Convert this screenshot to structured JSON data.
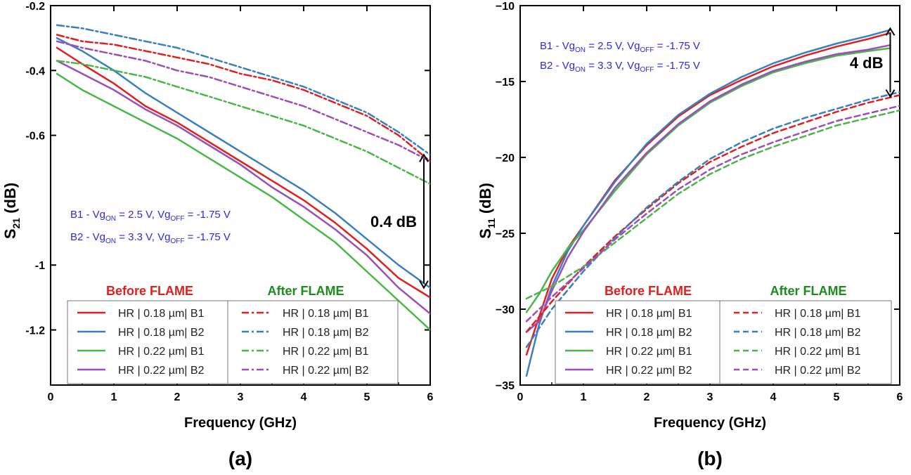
{
  "chart_data": [
    {
      "type": "line",
      "panel_label": "(a)",
      "xlabel": "Frequency (GHz)",
      "ylabel": {
        "main": "S",
        "sub": "21",
        "tail": " (dB)"
      },
      "xlim": [
        0,
        6
      ],
      "ylim": [
        -1.37,
        -0.2
      ],
      "xticks": [
        0,
        1,
        2,
        3,
        4,
        5,
        6
      ],
      "yticks": [
        -0.2,
        -0.4,
        -0.6,
        -1,
        -1.2
      ],
      "ytick_labels": [
        "-0.2",
        "-0.4",
        "-0.6",
        "-1",
        "-1.2"
      ],
      "grid": false,
      "legend_placement": "bottom",
      "group_labels": {
        "before": "Before FLAME",
        "after": "After FLAME"
      },
      "bias_notes": [
        {
          "prefix": "B1 - Vg",
          "on_sub": "ON",
          "mid": " = 2.5 V, Vg",
          "off_sub": "OFF",
          "suffix": " = -1.75 V"
        },
        {
          "prefix": "B2 - Vg",
          "on_sub": "ON",
          "mid": " = 3.3 V, Vg",
          "off_sub": "OFF",
          "suffix": " = -1.75 V"
        }
      ],
      "annotation": {
        "text": "0.4 dB",
        "x": 5.9,
        "y_from": -0.66,
        "y_to": -1.07
      },
      "series": [
        {
          "name": "HR | 0.18 µm| B1",
          "color": "#e0201e",
          "style": "solid",
          "group": "before",
          "x": [
            0.1,
            0.5,
            1,
            1.5,
            2,
            2.5,
            3,
            3.5,
            4,
            4.5,
            5,
            5.5,
            6
          ],
          "y": [
            -0.33,
            -0.38,
            -0.44,
            -0.51,
            -0.56,
            -0.62,
            -0.68,
            -0.74,
            -0.8,
            -0.87,
            -0.95,
            -1.04,
            -1.1
          ]
        },
        {
          "name": "HR | 0.18 µm| B2",
          "color": "#3a7fc1",
          "style": "solid",
          "group": "before",
          "x": [
            0.1,
            0.5,
            1,
            1.5,
            2,
            2.5,
            3,
            3.5,
            4,
            4.5,
            5,
            5.5,
            6
          ],
          "y": [
            -0.3,
            -0.34,
            -0.4,
            -0.47,
            -0.53,
            -0.59,
            -0.65,
            -0.71,
            -0.77,
            -0.84,
            -0.92,
            -1.0,
            -1.07
          ]
        },
        {
          "name": "HR | 0.22 µm| B1",
          "color": "#4bb648",
          "style": "solid",
          "group": "before",
          "x": [
            0.1,
            0.5,
            1,
            1.5,
            2,
            2.5,
            3,
            3.5,
            4,
            4.5,
            5,
            5.5,
            6
          ],
          "y": [
            -0.41,
            -0.46,
            -0.51,
            -0.56,
            -0.61,
            -0.67,
            -0.73,
            -0.79,
            -0.86,
            -0.93,
            -1.02,
            -1.11,
            -1.2
          ]
        },
        {
          "name": "HR | 0.22 µm| B2",
          "color": "#9b4fb8",
          "style": "solid",
          "group": "before",
          "x": [
            0.1,
            0.5,
            1,
            1.5,
            2,
            2.5,
            3,
            3.5,
            4,
            4.5,
            5,
            5.5,
            6
          ],
          "y": [
            -0.37,
            -0.41,
            -0.46,
            -0.52,
            -0.57,
            -0.63,
            -0.69,
            -0.76,
            -0.82,
            -0.89,
            -0.97,
            -1.07,
            -1.15
          ]
        },
        {
          "name": "HR | 0.18 µm| B1",
          "color": "#e0201e",
          "style": "dashdot",
          "group": "after",
          "x": [
            0.1,
            0.5,
            1,
            1.5,
            2,
            2.5,
            3,
            3.5,
            4,
            4.5,
            5,
            5.5,
            6
          ],
          "y": [
            -0.29,
            -0.31,
            -0.32,
            -0.34,
            -0.36,
            -0.38,
            -0.41,
            -0.43,
            -0.46,
            -0.5,
            -0.54,
            -0.6,
            -0.68
          ]
        },
        {
          "name": "HR | 0.18 µm| B2",
          "color": "#3a7fc1",
          "style": "dashdot",
          "group": "after",
          "x": [
            0.1,
            0.5,
            1,
            1.5,
            2,
            2.5,
            3,
            3.5,
            4,
            4.5,
            5,
            5.5,
            6
          ],
          "y": [
            -0.26,
            -0.27,
            -0.29,
            -0.31,
            -0.33,
            -0.36,
            -0.39,
            -0.42,
            -0.45,
            -0.49,
            -0.53,
            -0.59,
            -0.66
          ]
        },
        {
          "name": "HR | 0.22 µm| B1",
          "color": "#4bb648",
          "style": "dashdot",
          "group": "after",
          "x": [
            0.1,
            0.5,
            1,
            1.5,
            2,
            2.5,
            3,
            3.5,
            4,
            4.5,
            5,
            5.5,
            6
          ],
          "y": [
            -0.37,
            -0.38,
            -0.4,
            -0.42,
            -0.45,
            -0.48,
            -0.51,
            -0.54,
            -0.57,
            -0.61,
            -0.65,
            -0.7,
            -0.75
          ]
        },
        {
          "name": "HR | 0.22 µm| B2",
          "color": "#9b4fb8",
          "style": "dashdot",
          "group": "after",
          "x": [
            0.1,
            0.5,
            1,
            1.5,
            2,
            2.5,
            3,
            3.5,
            4,
            4.5,
            5,
            5.5,
            6
          ],
          "y": [
            -0.31,
            -0.33,
            -0.35,
            -0.37,
            -0.4,
            -0.42,
            -0.45,
            -0.48,
            -0.51,
            -0.55,
            -0.59,
            -0.63,
            -0.68
          ]
        }
      ]
    },
    {
      "type": "line",
      "panel_label": "(b)",
      "xlabel": "Frequency (GHz)",
      "ylabel": {
        "main": "S",
        "sub": "11",
        "tail": " (dB)"
      },
      "xlim": [
        0,
        6
      ],
      "ylim": [
        -35,
        -10
      ],
      "xticks": [
        0,
        1,
        2,
        3,
        4,
        5,
        6
      ],
      "yticks": [
        -10,
        -15,
        -20,
        -25,
        -30,
        -35
      ],
      "ytick_labels": [
        "−10",
        "−15",
        "−20",
        "−25",
        "−30",
        "−35"
      ],
      "grid": false,
      "legend_placement": "bottom-right",
      "group_labels": {
        "before": "Before FLAME",
        "after": "After FLAME"
      },
      "bias_notes": [
        {
          "prefix": "B1 - Vg",
          "on_sub": "ON",
          "mid": " = 2.5 V, Vg",
          "off_sub": "OFF",
          "suffix": " = -1.75 V"
        },
        {
          "prefix": "B2 - Vg",
          "on_sub": "ON",
          "mid": " = 3.3 V, Vg",
          "off_sub": "OFF",
          "suffix": " = -1.75 V"
        }
      ],
      "annotation": {
        "text": "4 dB",
        "x": 5.85,
        "y_from": -11.5,
        "y_to": -16.0
      },
      "series": [
        {
          "name": "HR | 0.18 µm| B1",
          "color": "#e0201e",
          "style": "solid",
          "group": "before",
          "x": [
            0.1,
            0.3,
            0.5,
            0.75,
            1,
            1.5,
            2,
            2.5,
            3,
            3.5,
            4,
            4.5,
            5,
            5.5,
            5.85
          ],
          "y": [
            -33,
            -30.5,
            -28,
            -26,
            -24.5,
            -21.5,
            -19.2,
            -17.3,
            -15.9,
            -14.9,
            -14.0,
            -13.3,
            -12.7,
            -12.2,
            -11.8
          ]
        },
        {
          "name": "HR | 0.18 µm| B2",
          "color": "#3a7fc1",
          "style": "solid",
          "group": "before",
          "x": [
            0.1,
            0.3,
            0.5,
            0.75,
            1,
            1.5,
            2,
            2.5,
            3,
            3.5,
            4,
            4.5,
            5,
            5.5,
            5.85
          ],
          "y": [
            -34.4,
            -31,
            -28.5,
            -26.2,
            -24.5,
            -21.6,
            -19.1,
            -17.2,
            -15.8,
            -14.7,
            -13.8,
            -13.1,
            -12.5,
            -12.0,
            -11.6
          ]
        },
        {
          "name": "HR | 0.22 µm| B1",
          "color": "#4bb648",
          "style": "solid",
          "group": "before",
          "x": [
            0.1,
            0.3,
            0.5,
            0.75,
            1,
            1.5,
            2,
            2.5,
            3,
            3.5,
            4,
            4.5,
            5,
            5.5,
            5.85
          ],
          "y": [
            -30.2,
            -29,
            -27.5,
            -26,
            -24.8,
            -22.2,
            -19.8,
            -17.9,
            -16.4,
            -15.3,
            -14.4,
            -13.8,
            -13.3,
            -13.0,
            -12.8
          ]
        },
        {
          "name": "HR | 0.22 µm| B2",
          "color": "#9b4fb8",
          "style": "solid",
          "group": "before",
          "x": [
            0.1,
            0.3,
            0.5,
            0.75,
            1,
            1.5,
            2,
            2.5,
            3,
            3.5,
            4,
            4.5,
            5,
            5.5,
            5.85
          ],
          "y": [
            -31.5,
            -30.8,
            -28.8,
            -26.6,
            -24.9,
            -22.0,
            -19.7,
            -17.8,
            -16.3,
            -15.2,
            -14.3,
            -13.7,
            -13.2,
            -12.9,
            -12.6
          ]
        },
        {
          "name": "HR | 0.18 µm| B1",
          "color": "#e0201e",
          "style": "dash",
          "group": "after",
          "x": [
            0.1,
            0.5,
            1,
            1.5,
            2,
            2.5,
            3,
            3.5,
            4,
            4.5,
            5,
            5.5,
            6
          ],
          "y": [
            -31.5,
            -29.5,
            -27.2,
            -25.2,
            -23.4,
            -21.7,
            -20.3,
            -19.3,
            -18.4,
            -17.7,
            -17.0,
            -16.4,
            -15.9
          ]
        },
        {
          "name": "HR | 0.18 µm| B2",
          "color": "#3a7fc1",
          "style": "dash",
          "group": "after",
          "x": [
            0.1,
            0.5,
            1,
            1.5,
            2,
            2.5,
            3,
            3.5,
            4,
            4.5,
            5,
            5.5,
            6
          ],
          "y": [
            -32.5,
            -30,
            -27.5,
            -25.3,
            -23.3,
            -21.6,
            -20.1,
            -19.0,
            -18.1,
            -17.4,
            -16.8,
            -16.2,
            -15.7
          ]
        },
        {
          "name": "HR | 0.22 µm| B1",
          "color": "#4bb648",
          "style": "dash",
          "group": "after",
          "x": [
            0.1,
            0.5,
            1,
            1.5,
            2,
            2.5,
            3,
            3.5,
            4,
            4.5,
            5,
            5.5,
            6
          ],
          "y": [
            -29.3,
            -28.5,
            -27.2,
            -25.6,
            -24.0,
            -22.4,
            -21.1,
            -20.1,
            -19.3,
            -18.6,
            -17.9,
            -17.4,
            -16.9
          ]
        },
        {
          "name": "HR | 0.22 µm| B2",
          "color": "#9b4fb8",
          "style": "dash",
          "group": "after",
          "x": [
            0.1,
            0.5,
            1,
            1.5,
            2,
            2.5,
            3,
            3.5,
            4,
            4.5,
            5,
            5.5,
            6
          ],
          "y": [
            -30.8,
            -29.2,
            -27.3,
            -25.4,
            -23.7,
            -22.1,
            -20.8,
            -19.8,
            -19.0,
            -18.3,
            -17.6,
            -17.1,
            -16.6
          ]
        }
      ]
    }
  ],
  "colors": {
    "note_text": "#2d2bd6",
    "before_label": "#e0201e",
    "after_label": "#1d8a1d",
    "axis": "#000000"
  }
}
